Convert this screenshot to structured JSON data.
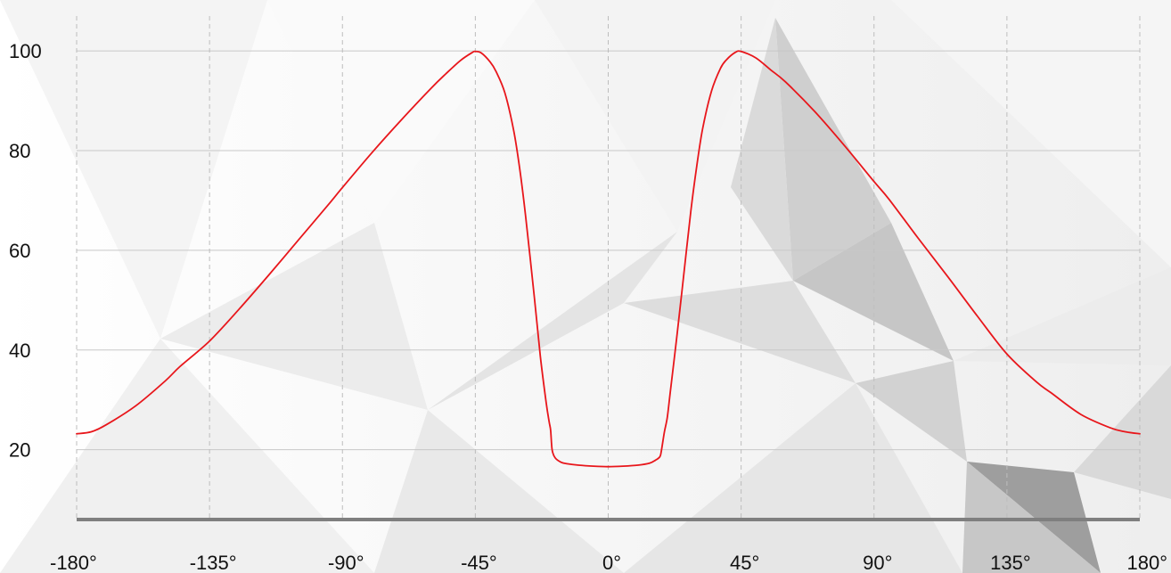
{
  "colors": {
    "line": "#e8161b",
    "axis": "#7f7f7f",
    "grid_h": "#c8c8c8",
    "grid_v": "#bdbdbd",
    "text": "#111111"
  },
  "chart_data": {
    "type": "line",
    "title": "",
    "xlabel": "",
    "ylabel": "",
    "xlim": [
      -180,
      180
    ],
    "ylim": [
      6,
      107
    ],
    "x_ticks": [
      -180,
      -135,
      -90,
      -45,
      0,
      45,
      90,
      135,
      180
    ],
    "x_tick_labels": [
      "-180°",
      "-135°",
      "-90°",
      "-45°",
      "0°",
      "45°",
      "90°",
      "135°",
      "180°"
    ],
    "y_ticks": [
      20,
      40,
      60,
      80,
      100
    ],
    "y_tick_labels": [
      "20",
      "40",
      "60",
      "80",
      "100"
    ],
    "grid": true,
    "legend": "none",
    "series": [
      {
        "x": [
          -180,
          -175,
          -170,
          -160,
          -150,
          -145,
          -135,
          -125,
          -115,
          -105,
          -95,
          -90,
          -80,
          -70,
          -60,
          -55,
          -50,
          -46,
          -45,
          -43,
          -40,
          -38,
          -35,
          -32,
          -30,
          -28,
          -25,
          -23,
          -21,
          -20,
          -19.5,
          -19,
          -18,
          -16,
          -14,
          -10,
          -5,
          0,
          5,
          10,
          14,
          16,
          17.5,
          18,
          19,
          20,
          21,
          23,
          25,
          28,
          30,
          32,
          35,
          38,
          40,
          43,
          45,
          50,
          55,
          60,
          70,
          80,
          90,
          95,
          105,
          115,
          125,
          135,
          145,
          150,
          160,
          170,
          175,
          180
        ],
        "y": [
          23.2,
          23.6,
          25,
          28.8,
          33.8,
          36.7,
          41.8,
          48.2,
          55,
          62,
          69,
          72.6,
          79.6,
          86.2,
          92.5,
          95.4,
          98.1,
          99.7,
          99.9,
          99.6,
          97.8,
          95.9,
          91.6,
          84,
          76.5,
          67,
          50.5,
          38.8,
          29.4,
          25.6,
          23.9,
          20,
          18.4,
          17.5,
          17.2,
          16.9,
          16.7,
          16.6,
          16.7,
          16.9,
          17.3,
          17.9,
          18.6,
          19.8,
          23.5,
          26.5,
          31.5,
          41.5,
          52,
          68,
          77,
          84.5,
          92,
          96.5,
          98.2,
          99.7,
          99.9,
          98.6,
          96.2,
          93.8,
          87.8,
          81,
          73.8,
          70.3,
          62.4,
          54.7,
          46.8,
          39.2,
          33.6,
          31.4,
          27.1,
          24.4,
          23.6,
          23.2
        ]
      }
    ]
  }
}
